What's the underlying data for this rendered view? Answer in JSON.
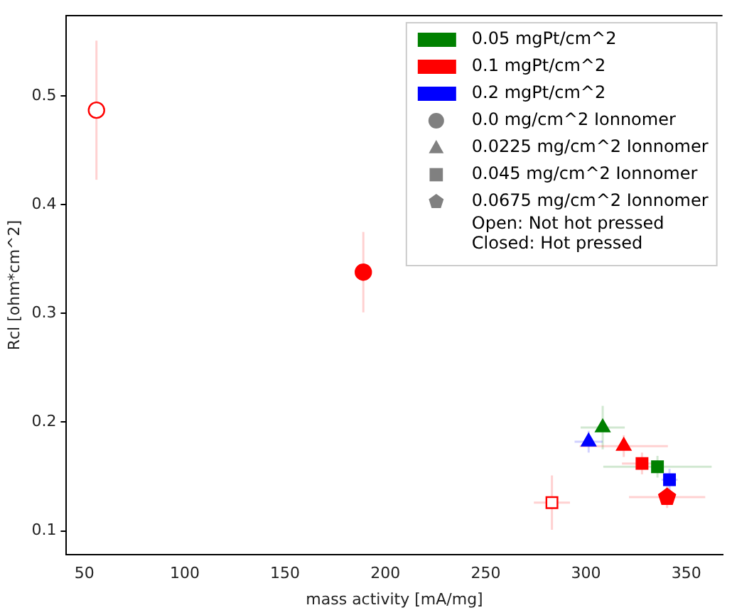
{
  "chart_data": {
    "type": "scatter",
    "xlabel": "mass activity [mA/mg]",
    "ylabel": "Rcl [ohm*cm^2]",
    "xlim": [
      41,
      368
    ],
    "xticks": [
      50,
      100,
      150,
      200,
      250,
      300,
      350
    ],
    "ylim": [
      0.078,
      0.574
    ],
    "yticks": [
      0.1,
      0.2,
      0.3,
      0.4,
      0.5
    ],
    "grid": false,
    "legend": "top right",
    "series": [
      {
        "name": "0.05 mgPt/cm^2",
        "color": "#008000",
        "x": [
          308.3,
          335.6
        ],
        "values": [
          0.195,
          0.159
        ],
        "marker": [
          "triangle",
          "square"
        ],
        "errors": [
          0.02,
          0.01
        ],
        "xerrors": [
          11,
          27
        ]
      },
      {
        "name": "0.1 mgPt/cm^2",
        "color": "#ff0000",
        "x": [
          189,
          318.8,
          327.9,
          340.4
        ],
        "values": [
          0.338,
          0.178,
          0.162,
          0.131
        ],
        "marker": [
          "circle",
          "triangle",
          "square",
          "pentagon"
        ],
        "errors": [
          0.037,
          0.01,
          0.01,
          0.01
        ],
        "xerrors": [
          null,
          22,
          10,
          19
        ]
      },
      {
        "name": "0.2 mgPt/cm^2",
        "color": "#0000ff",
        "x": [
          301.3,
          341.6
        ],
        "values": [
          0.182,
          0.147
        ],
        "marker": [
          "triangle",
          "square"
        ],
        "errors": [
          0.01,
          0.01
        ],
        "xerrors": [
          7,
          4
        ]
      },
      {
        "color": "#ff0000",
        "colors": [
          "#ffffff",
          "#ffffff"
        ],
        "x": [
          56,
          283
        ],
        "values": [
          0.487,
          0.126
        ],
        "marker": [
          "circle",
          "square"
        ],
        "errors": [
          0.064,
          0.025
        ],
        "xerrors": [
          null,
          9
        ]
      },
      {
        "name": "0.0 mg/cm^2 Ionnomer",
        "color": "#808080",
        "marker": "circle"
      },
      {
        "name": "0.0225 mg/cm^2 Ionnomer",
        "color": "#808080",
        "marker": "triangle"
      },
      {
        "name": "0.045 mg/cm^2 Ionnomer",
        "color": "#808080",
        "marker": "square"
      },
      {
        "name": "0.0675 mg/cm^2 Ionnomer",
        "color": "#808080",
        "marker": "pentagon"
      }
    ],
    "annotations": [
      "Open: Not hot pressed",
      "Closed: Hot pressed"
    ]
  }
}
